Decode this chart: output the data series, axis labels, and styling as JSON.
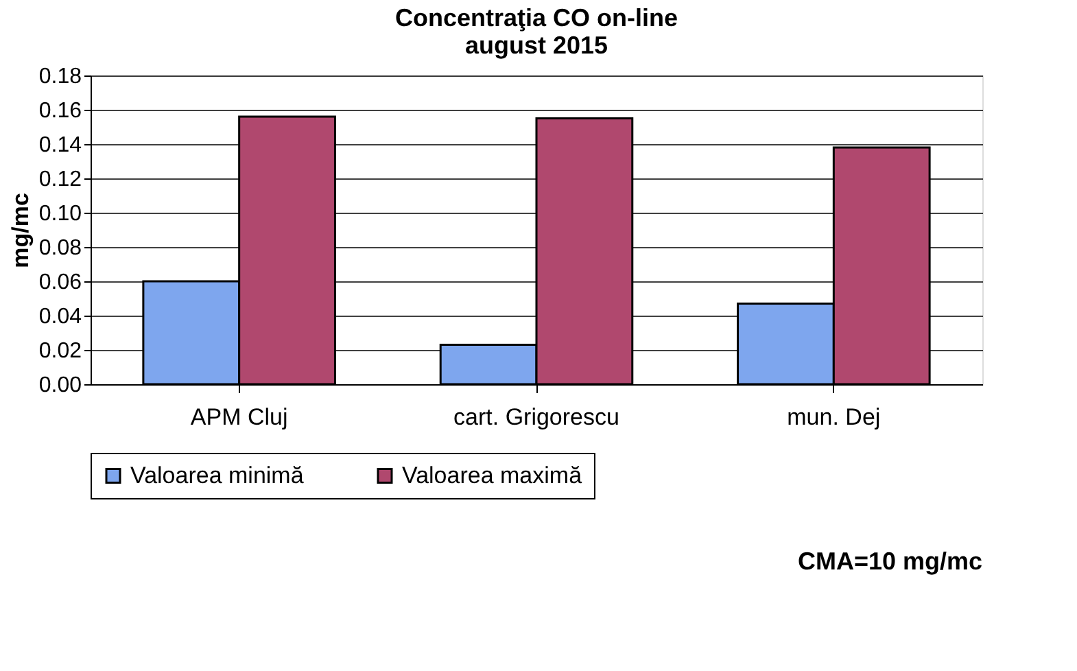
{
  "chart_data": {
    "type": "bar",
    "title": [
      "Concentraţia CO on-line",
      "august 2015"
    ],
    "ylabel": "mg/mc",
    "categories": [
      "APM Cluj",
      "cart. Grigorescu",
      "mun. Dej"
    ],
    "series": [
      {
        "name": "Valoarea minimă",
        "color": "#7ea6ee",
        "values": [
          0.06,
          0.023,
          0.047
        ]
      },
      {
        "name": "Valoarea maximă",
        "color": "#b0486e",
        "values": [
          0.156,
          0.155,
          0.138
        ]
      }
    ],
    "ylim": [
      0,
      0.18
    ],
    "yticks": [
      {
        "value": 0,
        "label": "0.00"
      },
      {
        "value": 0.02,
        "label": "0.02"
      },
      {
        "value": 0.04,
        "label": "0.04"
      },
      {
        "value": 0.06,
        "label": "0.06"
      },
      {
        "value": 0.08,
        "label": "0.08"
      },
      {
        "value": 0.1,
        "label": "0.10"
      },
      {
        "value": 0.12,
        "label": "0.12"
      },
      {
        "value": 0.14,
        "label": "0.14"
      },
      {
        "value": 0.16,
        "label": "0.16"
      },
      {
        "value": 0.18,
        "label": "0.18"
      }
    ],
    "grid": "y",
    "legend": "bottom",
    "annotations": [
      "CMA=10 mg/mc"
    ]
  }
}
